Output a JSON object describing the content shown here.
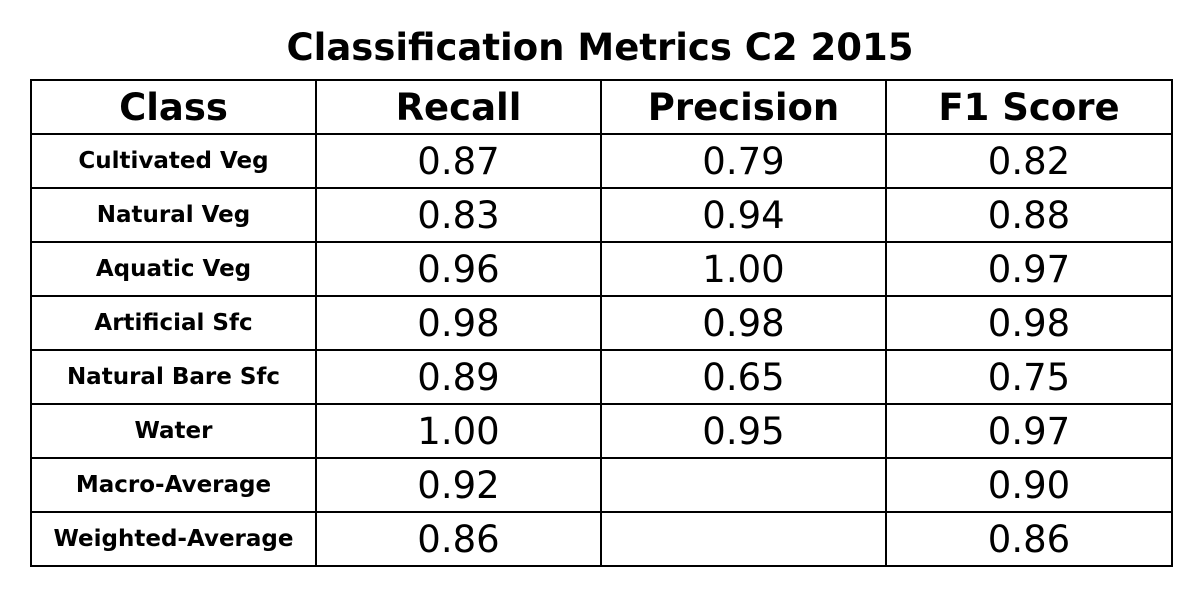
{
  "chart_data": {
    "type": "table",
    "title": "Classification Metrics C2 2015",
    "columns": [
      "Class",
      "Recall",
      "Precision",
      "F1 Score"
    ],
    "rows": [
      [
        "Cultivated Veg",
        "0.87",
        "0.79",
        "0.82"
      ],
      [
        "Natural Veg",
        "0.83",
        "0.94",
        "0.88"
      ],
      [
        "Aquatic Veg",
        "0.96",
        "1.00",
        "0.97"
      ],
      [
        "Artificial Sfc",
        "0.98",
        "0.98",
        "0.98"
      ],
      [
        "Natural Bare Sfc",
        "0.89",
        "0.65",
        "0.75"
      ],
      [
        "Water",
        "1.00",
        "0.95",
        "0.97"
      ],
      [
        "Macro-Average",
        "0.92",
        "",
        "0.90"
      ],
      [
        "Weighted-Average",
        "0.86",
        "",
        "0.86"
      ]
    ]
  }
}
